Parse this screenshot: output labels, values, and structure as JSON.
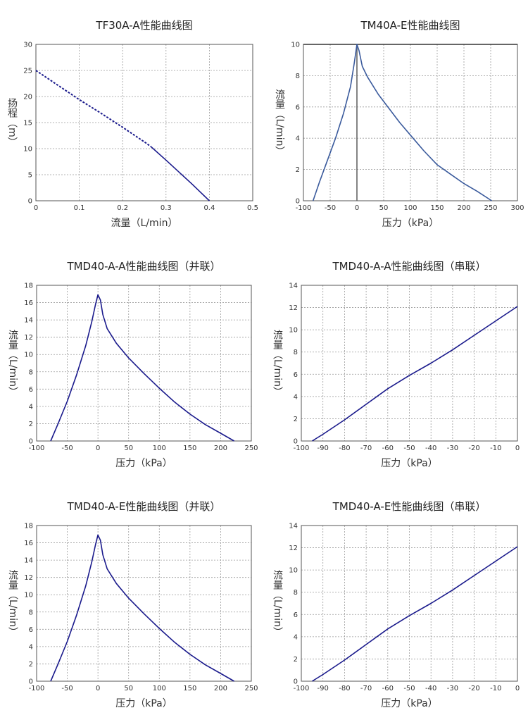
{
  "chart_data": [
    {
      "type": "line",
      "title": "TF30A-A性能曲线图",
      "xlabel": "流量（L/min）",
      "ylabel": "扬程（m）",
      "xlim": [
        0,
        0.5
      ],
      "ylim": [
        0,
        30
      ],
      "xticks": [
        "0",
        "0.1",
        "0.2",
        "0.3",
        "0.4",
        "0.5"
      ],
      "yticks": [
        "0",
        "5",
        "10",
        "15",
        "20",
        "25",
        "30"
      ],
      "grid": true,
      "series": [
        {
          "style": "dashed",
          "color": "#1a1a8c",
          "x": [
            0,
            0.05,
            0.1,
            0.15,
            0.2,
            0.25,
            0.265
          ],
          "y": [
            25,
            22.2,
            19.4,
            16.8,
            14.1,
            11.3,
            10.4
          ]
        },
        {
          "style": "solid",
          "color": "#1a1a8c",
          "x": [
            0.265,
            0.3,
            0.33,
            0.36,
            0.38,
            0.4
          ],
          "y": [
            10.4,
            7.8,
            5.5,
            3.2,
            1.6,
            0
          ]
        }
      ]
    },
    {
      "type": "line",
      "title": "TM40A-E性能曲线图",
      "xlabel": "压力（kPa）",
      "ylabel": "流量（L/min）",
      "xlim": [
        -100,
        300
      ],
      "ylim": [
        0,
        10
      ],
      "xticks": [
        "-100",
        "-50",
        "0",
        "50",
        "100",
        "150",
        "200",
        "250",
        "300"
      ],
      "yticks": [
        "0",
        "2",
        "4",
        "6",
        "8",
        "10"
      ],
      "grid": true,
      "zero_line": true,
      "series": [
        {
          "style": "solid",
          "color": "#3a5a9c",
          "x": [
            -82,
            -70,
            -55,
            -40,
            -25,
            -12,
            -5,
            0,
            4,
            10,
            20,
            40,
            60,
            80,
            100,
            125,
            150,
            175,
            200,
            225,
            252
          ],
          "y": [
            0,
            1.2,
            2.6,
            4.0,
            5.6,
            7.3,
            8.8,
            10,
            9.6,
            8.6,
            7.9,
            6.8,
            5.9,
            5.0,
            4.2,
            3.2,
            2.3,
            1.7,
            1.1,
            0.6,
            0
          ]
        }
      ]
    },
    {
      "type": "line",
      "title": "TMD40-A-A性能曲线图（并联）",
      "xlabel": "压力（kPa）",
      "ylabel": "流量（L/min）",
      "xlim": [
        -100,
        250
      ],
      "ylim": [
        0,
        18
      ],
      "xticks": [
        "-100",
        "-50",
        "0",
        "50",
        "100",
        "150",
        "200",
        "250"
      ],
      "yticks": [
        "0",
        "2",
        "4",
        "6",
        "8",
        "10",
        "12",
        "14",
        "16",
        "18"
      ],
      "grid": true,
      "series": [
        {
          "style": "solid",
          "color": "#1a1a8c",
          "x": [
            -77,
            -65,
            -50,
            -35,
            -20,
            -10,
            -4,
            0,
            4,
            8,
            15,
            30,
            50,
            75,
            100,
            125,
            150,
            175,
            200,
            222
          ],
          "y": [
            0,
            2.0,
            4.6,
            7.6,
            11.0,
            13.8,
            15.8,
            16.9,
            16.3,
            14.6,
            13.0,
            11.3,
            9.6,
            7.8,
            6.1,
            4.5,
            3.1,
            1.9,
            0.9,
            0
          ]
        }
      ]
    },
    {
      "type": "line",
      "title": "TMD40-A-A性能曲线图（串联）",
      "xlabel": "压力（kPa）",
      "ylabel": "流量（L/min）",
      "xlim": [
        -100,
        0
      ],
      "ylim": [
        0,
        14
      ],
      "xticks": [
        "-100",
        "-90",
        "-80",
        "-70",
        "-60",
        "-50",
        "-40",
        "-30",
        "-20",
        "-10",
        "0"
      ],
      "yticks": [
        "0",
        "2",
        "4",
        "6",
        "8",
        "10",
        "12",
        "14"
      ],
      "grid": true,
      "series": [
        {
          "style": "solid",
          "color": "#1a1a8c",
          "x": [
            -95,
            -90,
            -80,
            -70,
            -60,
            -50,
            -40,
            -30,
            -20,
            -10,
            0
          ],
          "y": [
            0,
            0.6,
            1.9,
            3.3,
            4.7,
            5.9,
            7.0,
            8.2,
            9.5,
            10.8,
            12.1
          ]
        }
      ]
    },
    {
      "type": "line",
      "title": "TMD40-A-E性能曲线图（并联）",
      "xlabel": "压力（kPa）",
      "ylabel": "流量（L/min）",
      "xlim": [
        -100,
        250
      ],
      "ylim": [
        0,
        18
      ],
      "xticks": [
        "-100",
        "-50",
        "0",
        "50",
        "100",
        "150",
        "200",
        "250"
      ],
      "yticks": [
        "0",
        "2",
        "4",
        "6",
        "8",
        "10",
        "12",
        "14",
        "16",
        "18"
      ],
      "grid": true,
      "series": [
        {
          "style": "solid",
          "color": "#1a1a8c",
          "x": [
            -77,
            -65,
            -50,
            -35,
            -20,
            -10,
            -4,
            0,
            4,
            8,
            15,
            30,
            50,
            75,
            100,
            125,
            150,
            175,
            200,
            222
          ],
          "y": [
            0,
            2.0,
            4.6,
            7.6,
            11.0,
            13.8,
            15.8,
            16.9,
            16.3,
            14.6,
            13.0,
            11.3,
            9.6,
            7.8,
            6.1,
            4.5,
            3.1,
            1.9,
            0.9,
            0
          ]
        }
      ]
    },
    {
      "type": "line",
      "title": "TMD40-A-E性能曲线图（串联）",
      "xlabel": "压力（kPa）",
      "ylabel": "流量（L/min）",
      "xlim": [
        -100,
        0
      ],
      "ylim": [
        0,
        14
      ],
      "xticks": [
        "-100",
        "-90",
        "-80",
        "-70",
        "-60",
        "-50",
        "-40",
        "-30",
        "-20",
        "-10",
        "0"
      ],
      "yticks": [
        "0",
        "2",
        "4",
        "6",
        "8",
        "10",
        "12",
        "14"
      ],
      "grid": true,
      "series": [
        {
          "style": "solid",
          "color": "#1a1a8c",
          "x": [
            -95,
            -90,
            -80,
            -70,
            -60,
            -50,
            -40,
            -30,
            -20,
            -10,
            0
          ],
          "y": [
            0,
            0.6,
            1.9,
            3.3,
            4.7,
            5.9,
            7.0,
            8.2,
            9.5,
            10.8,
            12.1
          ]
        }
      ]
    }
  ]
}
